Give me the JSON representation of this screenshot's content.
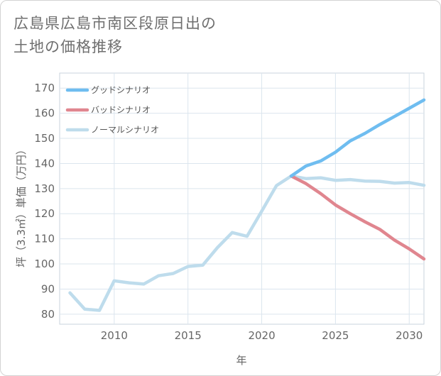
{
  "title_line1": "広島県広島市南区段原日出の",
  "title_line2": "土地の価格推移",
  "chart_data": {
    "type": "line",
    "xlabel": "年",
    "ylabel": "坪（3.3㎡）単価（万円）",
    "xlim": [
      2006.3,
      2031
    ],
    "ylim": [
      76,
      176
    ],
    "x_ticks": [
      2010,
      2015,
      2020,
      2025,
      2030
    ],
    "y_ticks": [
      80,
      90,
      100,
      110,
      120,
      130,
      140,
      150,
      160,
      170
    ],
    "grid": true,
    "legend_position": "top-left",
    "series": [
      {
        "name": "グッドシナリオ",
        "color": "#6fbdf0",
        "x": [
          2022,
          2023,
          2024,
          2025,
          2026,
          2027,
          2028,
          2029,
          2030,
          2031
        ],
        "y": [
          135,
          139,
          141,
          144.5,
          149,
          152,
          155.5,
          158.7,
          162,
          165.3
        ]
      },
      {
        "name": "バッドシナリオ",
        "color": "#e0868f",
        "x": [
          2022,
          2023,
          2024,
          2025,
          2026,
          2027,
          2028,
          2029,
          2030,
          2031
        ],
        "y": [
          135,
          132,
          128,
          123.5,
          120,
          116.8,
          113.8,
          109.5,
          106,
          102
        ]
      },
      {
        "name": "ノーマルシナリオ",
        "color": "#bedcec",
        "x": [
          2007,
          2008,
          2009,
          2010,
          2011,
          2012,
          2013,
          2014,
          2015,
          2016,
          2017,
          2018,
          2019,
          2020,
          2021,
          2022,
          2023,
          2024,
          2025,
          2026,
          2027,
          2028,
          2029,
          2030,
          2031
        ],
        "y": [
          88.5,
          82,
          81.5,
          93.3,
          92.5,
          92,
          95.3,
          96.2,
          99,
          99.5,
          106.5,
          112.5,
          111,
          121,
          131.2,
          135,
          134,
          134.3,
          133.3,
          133.6,
          133,
          132.9,
          132.2,
          132.4,
          131.3
        ]
      }
    ]
  }
}
